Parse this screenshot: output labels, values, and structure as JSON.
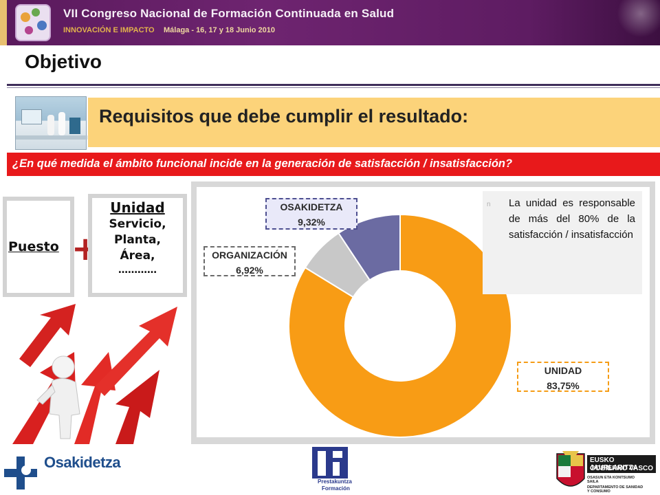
{
  "header": {
    "title": "VII Congreso Nacional de Formación Continuada en Salud",
    "subtitle": "INNOVACIÓN E IMPACTO",
    "place_date": "Málaga - 16, 17 y 18 Junio 2010",
    "colors": {
      "band": "#6e2470",
      "accent": "#e2b24c"
    }
  },
  "page": {
    "heading": "Objetivo",
    "requirements_title": "Requisitos que debe cumplir el resultado:",
    "question": "¿En qué medida el ámbito funcional incide en la generación de satisfacción / insatisfacción?"
  },
  "factors": {
    "puesto": "Puesto",
    "plus": "+",
    "unidad_title": "Unidad",
    "unidad_lines": [
      "Servicio,",
      "Planta,",
      "Área,"
    ],
    "unidad_dots": "…………"
  },
  "chart_data": {
    "type": "pie",
    "donut": true,
    "categories": [
      "UNIDAD",
      "ORGANIZACIÓN",
      "OSAKIDETZA"
    ],
    "values": [
      83.75,
      6.92,
      9.32
    ],
    "value_labels": [
      "83,75%",
      "6,92%",
      "9,32%"
    ],
    "colors": [
      "#f89c15",
      "#c8c8c8",
      "#6b6ba2"
    ]
  },
  "note": {
    "bullet": "n",
    "text": "La unidad es responsable de más del 80% de la satisfacción / insatisfacción"
  },
  "footer": {
    "osakidetza": "Osakidetza",
    "prestakuntza_1": "Prestakuntza",
    "prestakuntza_2": "Formación",
    "gv_line1": "EUSKO JAURLARITZA",
    "gv_line2": "GOBIERNO VASCO",
    "gv_sub1": "OSASUN ETA KONTSUMO",
    "gv_sub2": "SAILA",
    "gv_sub3": "DEPARTAMENTO DE SANIDAD",
    "gv_sub4": "Y CONSUMO"
  }
}
